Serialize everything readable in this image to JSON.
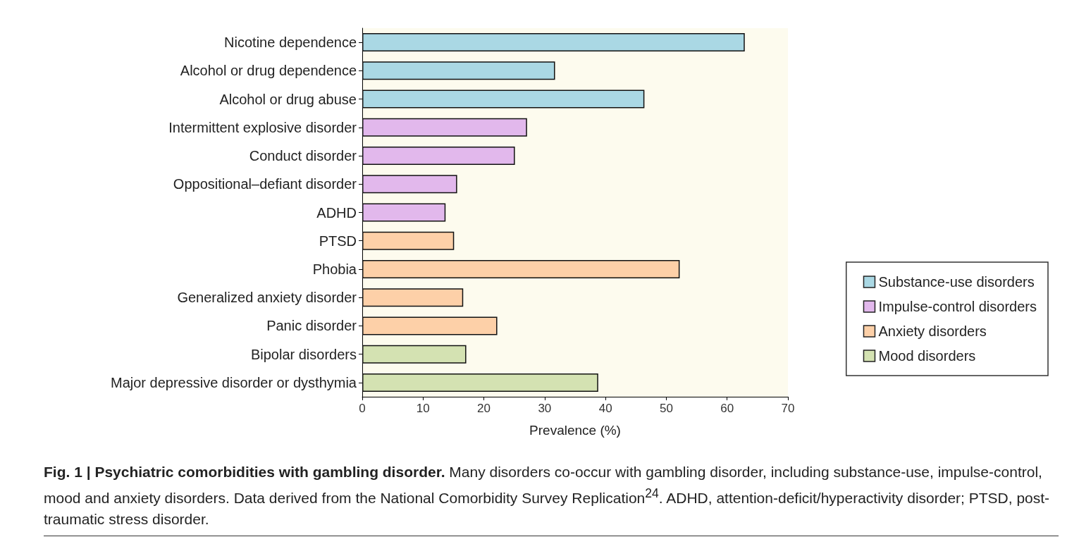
{
  "chart_data": {
    "type": "bar",
    "orientation": "horizontal",
    "stacked": true,
    "title": "Fig. 1 | Psychiatric comorbidities with gambling disorder.",
    "xlabel": "Prevalence (%)",
    "categories": [
      "Nicotine dependence",
      "Alcohol or drug dependence",
      "Alcohol or drug abuse",
      "Intermittent explosive disorder",
      "Conduct disorder",
      "Oppositional–defiant disorder",
      "ADHD",
      "PTSD",
      "Phobia",
      "Generalized anxiety disorder",
      "Panic disorder",
      "Bipolar disorders",
      "Major depressive disorder or dysthymia"
    ],
    "series": [
      {
        "name": "Substance-use disorders",
        "color": "#aad8e4",
        "values": [
          62.9,
          31.7,
          46.4,
          null,
          null,
          null,
          null,
          null,
          null,
          null,
          null,
          null,
          null
        ]
      },
      {
        "name": "Impulse-control disorders",
        "color": "#e2b8ec",
        "values": [
          null,
          null,
          null,
          27.1,
          25.1,
          15.6,
          13.7,
          null,
          null,
          null,
          null,
          null,
          null
        ]
      },
      {
        "name": "Anxiety disorders",
        "color": "#fdd0a8",
        "values": [
          null,
          null,
          null,
          null,
          null,
          null,
          null,
          15.1,
          52.2,
          16.6,
          22.2,
          null,
          null
        ]
      },
      {
        "name": "Mood disorders",
        "color": "#d4e2b2",
        "values": [
          null,
          null,
          null,
          null,
          null,
          null,
          null,
          null,
          null,
          null,
          null,
          17.1,
          38.8
        ]
      }
    ],
    "xlim": [
      0,
      70
    ],
    "xticks": [
      0,
      10,
      20,
      30,
      40,
      50,
      60,
      70
    ],
    "legend": "right",
    "grid": false,
    "annotations": [
      "Many disorders co-occur with gambling disorder, including substance-use, impulse-control, mood and anxiety disorders. Data derived from the National Comorbidity Survey Replication$^{24}$. ADHD, attention-deficit/hyperactivity disorder; PTSD, post-traumatic stress disorder."
    ]
  }
}
